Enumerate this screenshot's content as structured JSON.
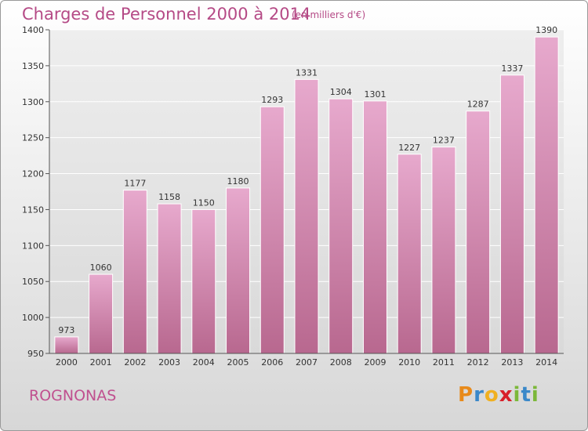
{
  "header": {
    "title": "Charges de Personnel 2000 à 2014",
    "subtitle": "(en milliers d'€)"
  },
  "footer": {
    "location": "ROGNONAS",
    "logo_text": "Proxiti",
    "logo_colors": [
      "#e88a1a",
      "#3a88c9",
      "#f0b020",
      "#d8202a",
      "#7cb83a",
      "#3a88c9",
      "#7cb83a"
    ]
  },
  "colors": {
    "bar": "#d98cb8",
    "bar_light": "#ecbfd9",
    "text": "#b54a86",
    "grid": "#ffffff"
  },
  "chart_data": {
    "type": "bar",
    "categories": [
      "2000",
      "2001",
      "2002",
      "2003",
      "2004",
      "2005",
      "2006",
      "2007",
      "2008",
      "2009",
      "2010",
      "2011",
      "2012",
      "2013",
      "2014"
    ],
    "values": [
      973,
      1060,
      1177,
      1158,
      1150,
      1180,
      1293,
      1331,
      1304,
      1301,
      1227,
      1237,
      1287,
      1337,
      1390
    ],
    "ylim": [
      950,
      1400
    ],
    "yticks": [
      950,
      1000,
      1050,
      1100,
      1150,
      1200,
      1250,
      1300,
      1350,
      1400
    ],
    "grid": true,
    "title": "Charges de Personnel 2000 à 2014",
    "xlabel": "",
    "ylabel": ""
  }
}
